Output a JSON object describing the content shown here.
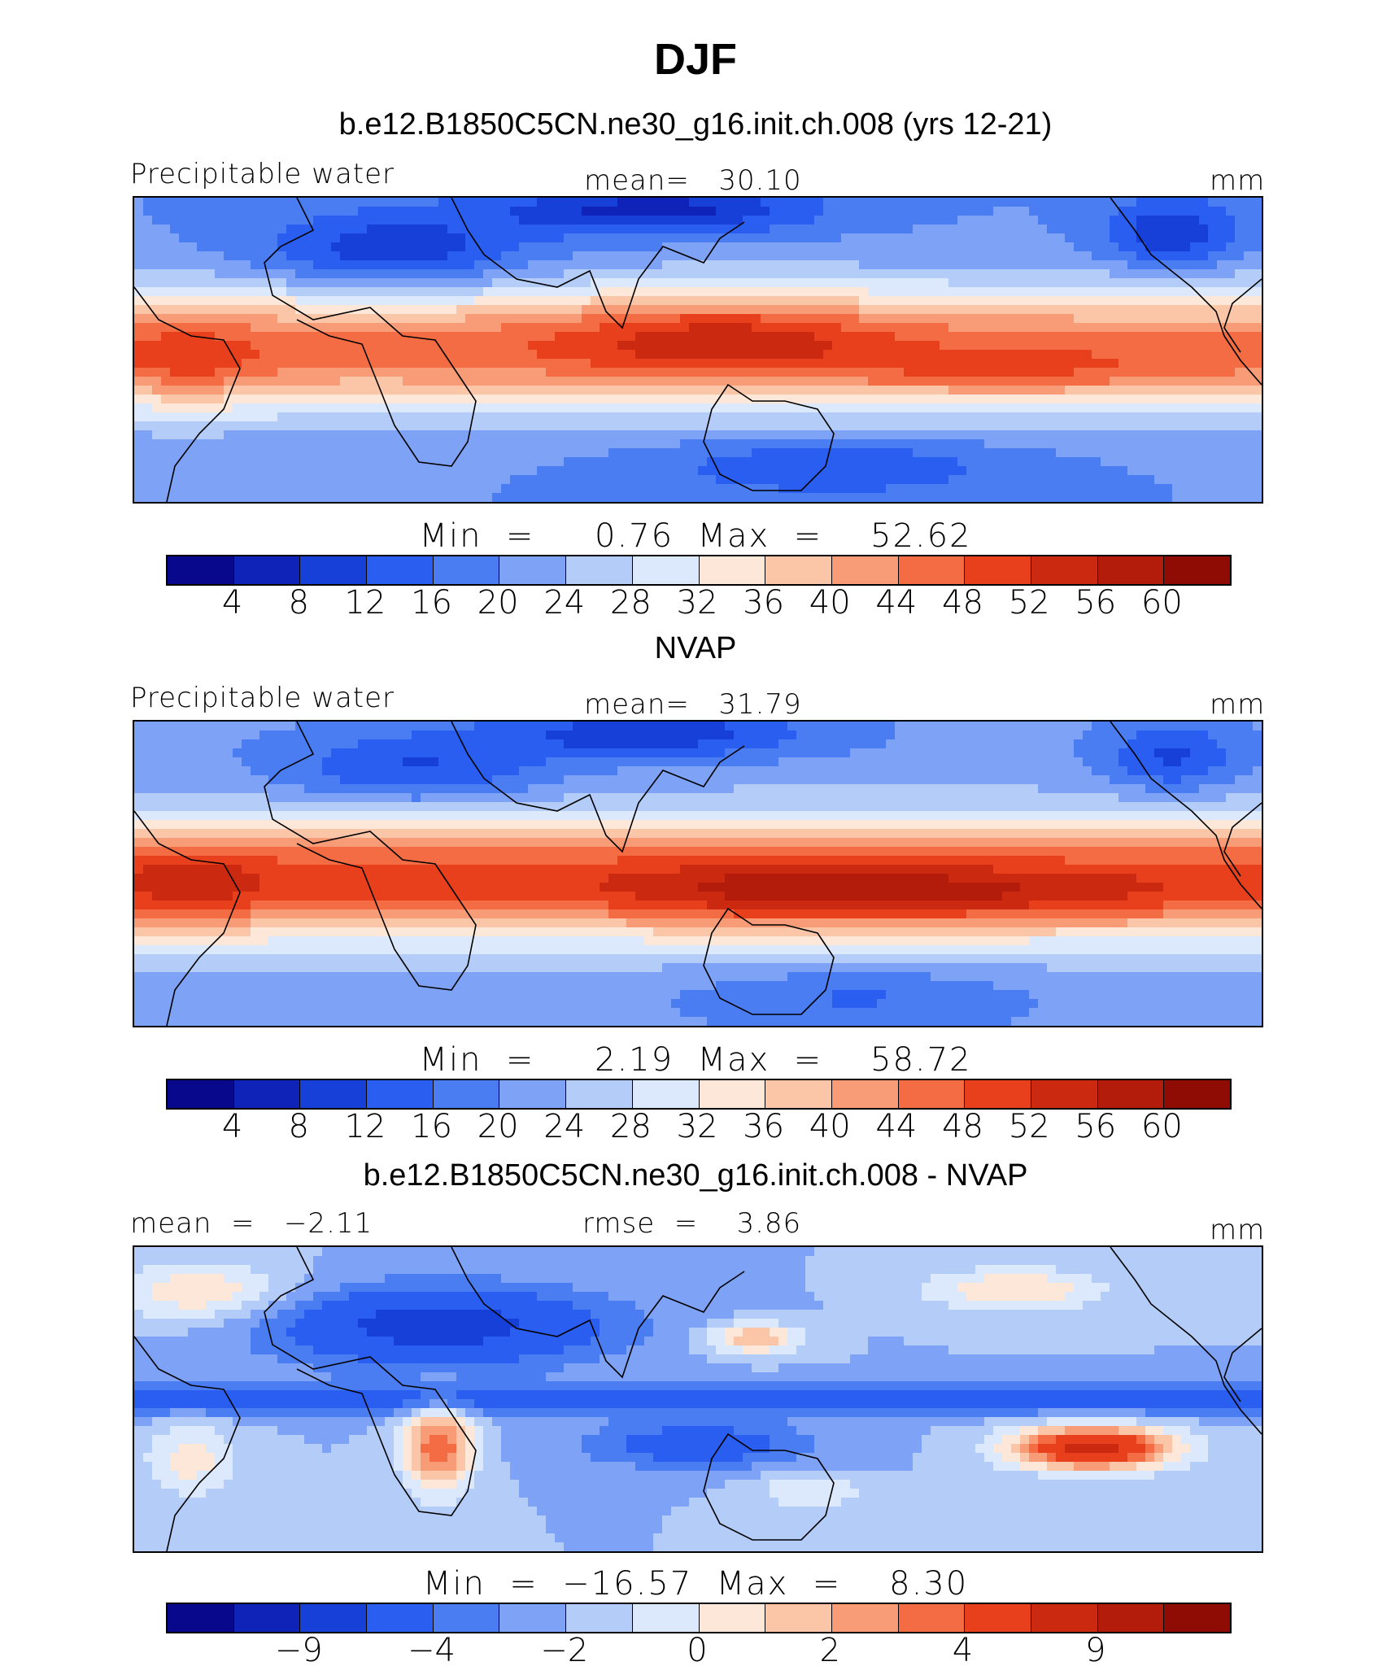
{
  "title": "DJF",
  "palette": [
    "#08088c",
    "#0f23b8",
    "#1640d8",
    "#2a5ef0",
    "#4a7cf2",
    "#7ea2f6",
    "#b4ccf8",
    "#dce8fb",
    "#fde7d8",
    "#fbc6a8",
    "#f89c78",
    "#f46c43",
    "#e8401d",
    "#cc2a10",
    "#b31c0a",
    "#8e0c04"
  ],
  "panels": [
    {
      "heading": "b.e12.B1850C5CN.ne30_g16.init.ch.008 (yrs 12-21)",
      "left_label": "Precipitable water",
      "center_label": "mean=   30.10",
      "right_label": "mm",
      "minmax": "Min  =     0.76  Max  =    52.62",
      "colorbar_ticks": [
        "4",
        "8",
        "12",
        "16",
        "20",
        "24",
        "28",
        "32",
        "36",
        "40",
        "44",
        "48",
        "52",
        "56",
        "60"
      ],
      "field": "model"
    },
    {
      "heading": "NVAP",
      "left_label": "Precipitable water",
      "center_label": "mean=   31.79",
      "right_label": "mm",
      "minmax": "Min  =     2.19  Max  =    58.72",
      "colorbar_ticks": [
        "4",
        "8",
        "12",
        "16",
        "20",
        "24",
        "28",
        "32",
        "36",
        "40",
        "44",
        "48",
        "52",
        "56",
        "60"
      ],
      "field": "obs"
    },
    {
      "heading": "b.e12.B1850C5CN.ne30_g16.init.ch.008 - NVAP",
      "left_label": "mean  =   −2.11",
      "center_label": "rmse  =    3.86",
      "right_label": "mm",
      "minmax": "Min  =  −16.57  Max  =    8.30",
      "colorbar_ticks": [
        "−9",
        "−4",
        "−2",
        "0",
        "2",
        "4",
        "9"
      ],
      "field": "diff"
    }
  ]
}
